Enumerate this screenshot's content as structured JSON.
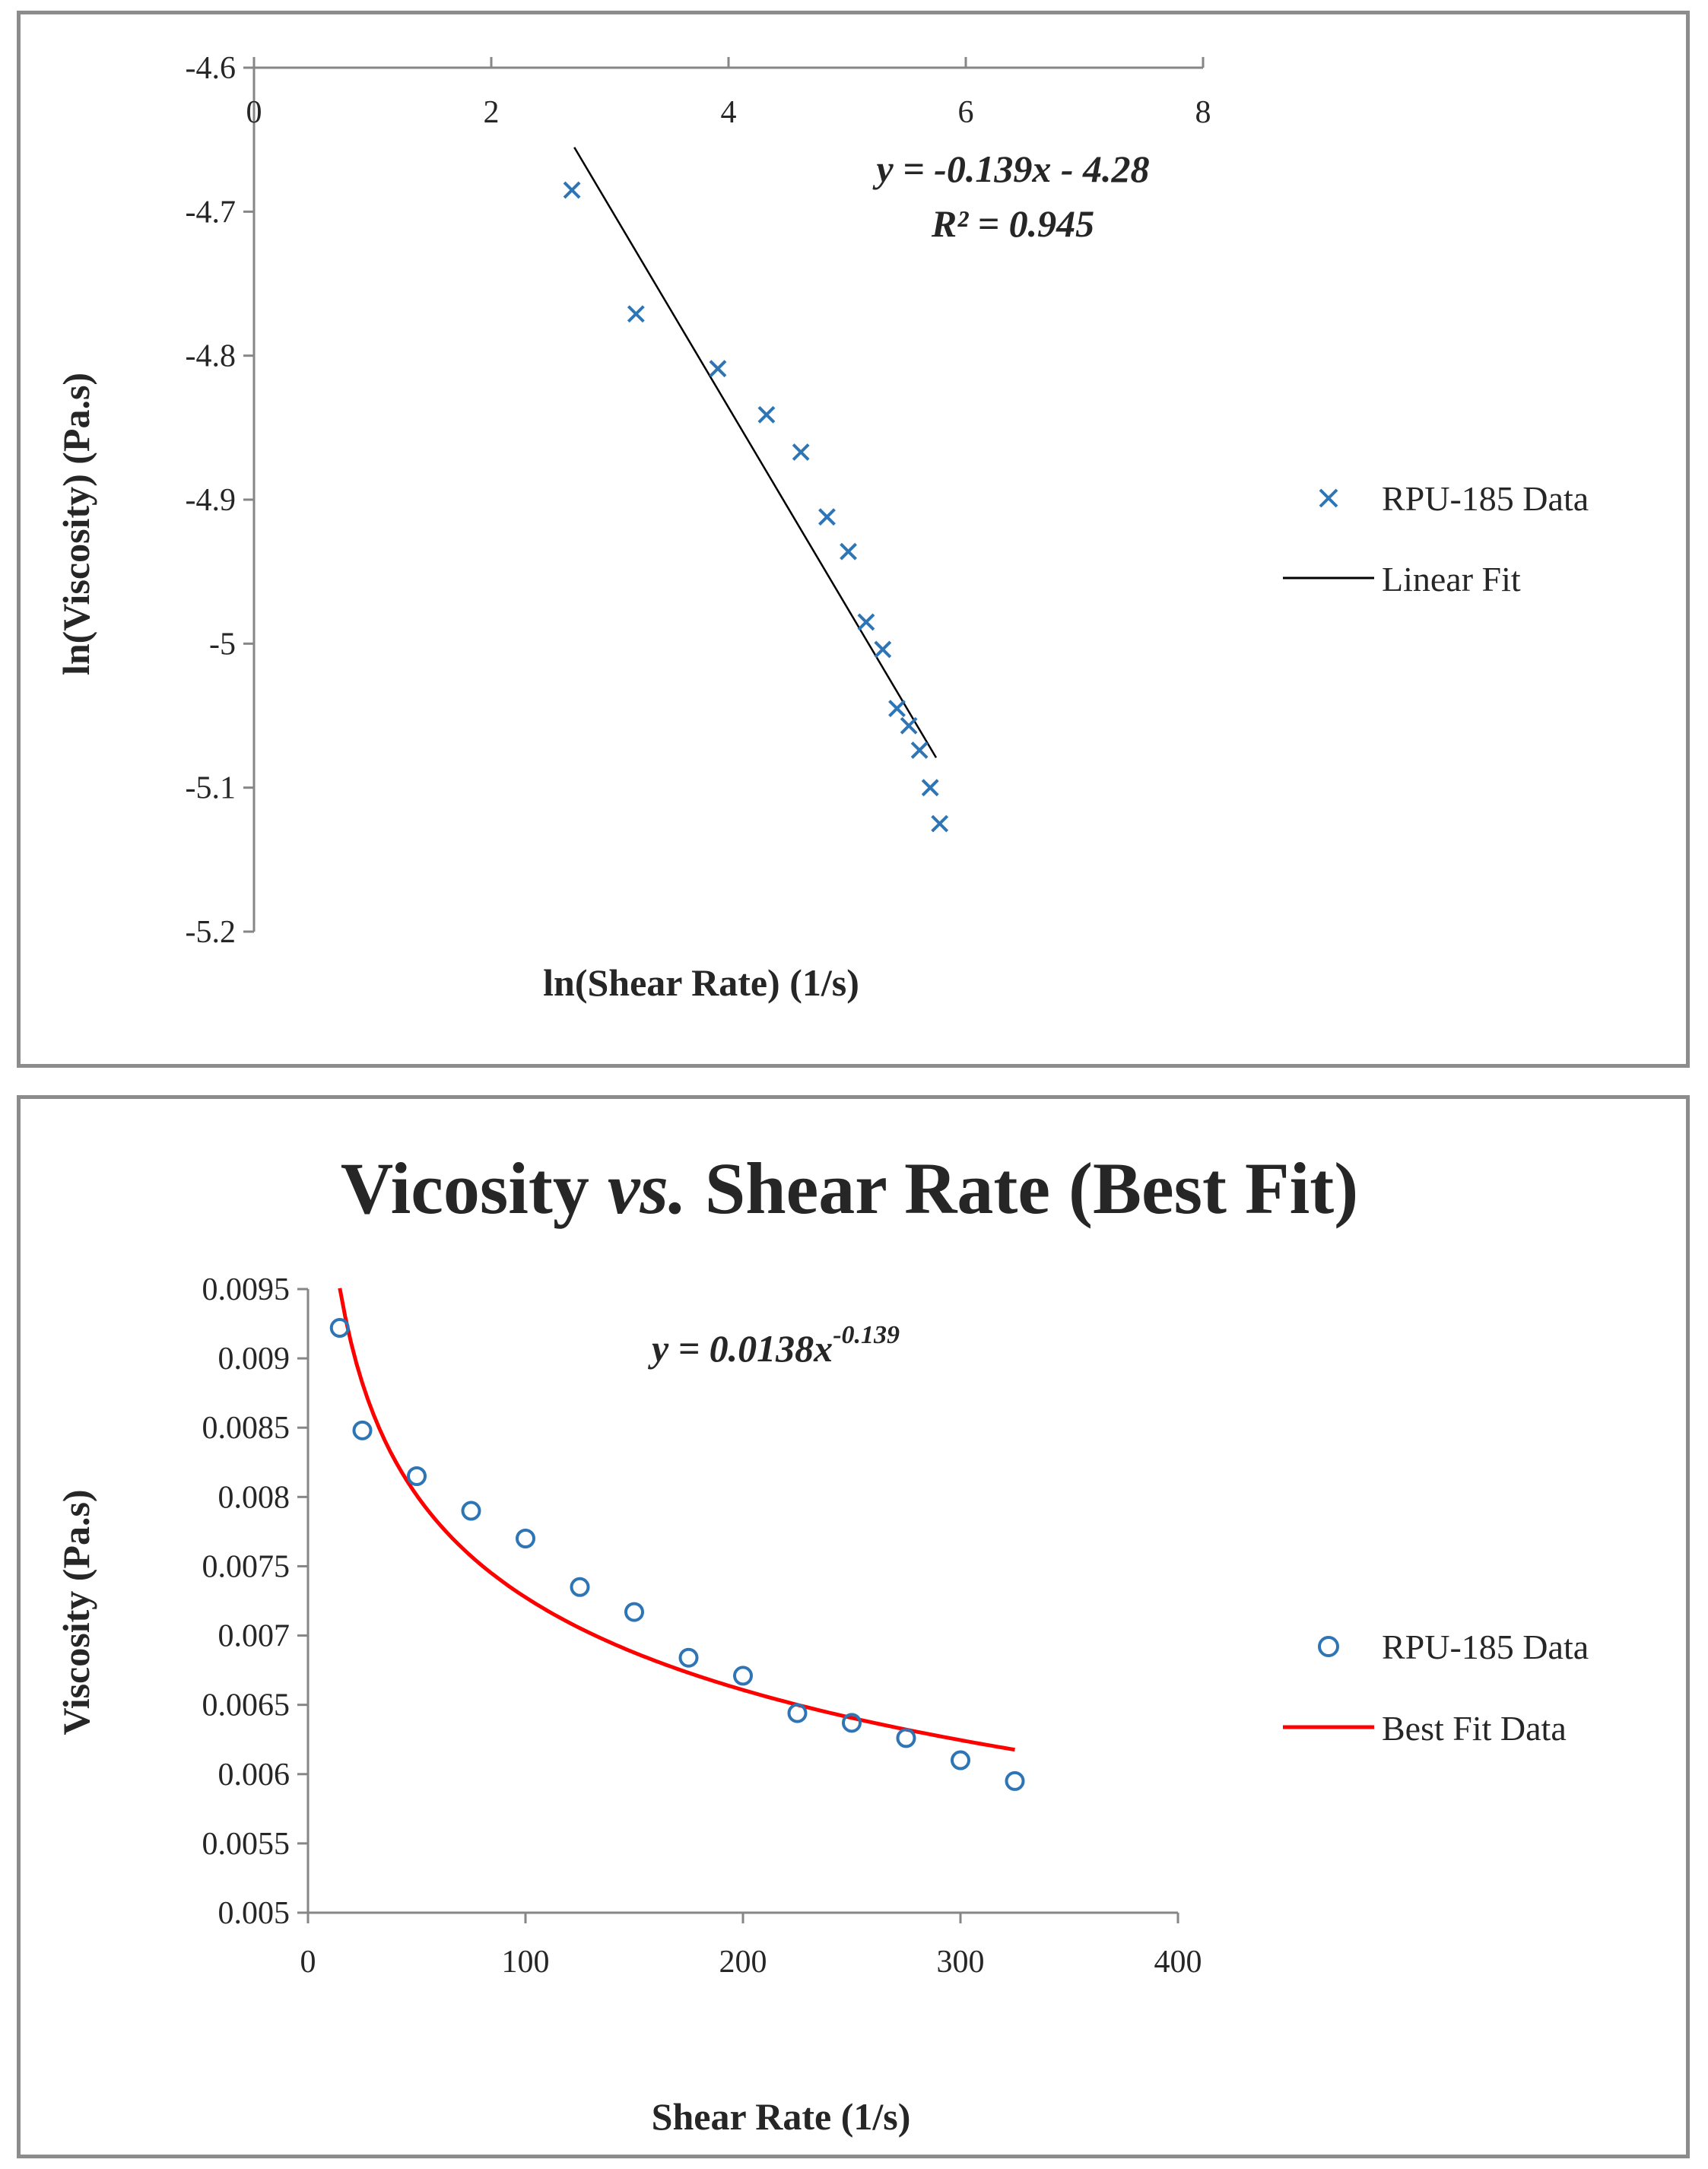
{
  "chart_data": [
    {
      "type": "scatter",
      "title": "",
      "xlabel": "ln(Shear Rate) (1/s)",
      "ylabel": "ln(Viscosity) (Pa.s)",
      "xlim": [
        0,
        8
      ],
      "ylim": [
        -5.2,
        -4.6
      ],
      "x_ticks": [
        "0",
        "2",
        "4",
        "6",
        "8"
      ],
      "y_ticks": [
        "-4.6",
        "-4.7",
        "-4.8",
        "-4.9",
        "-5",
        "-5.1",
        "-5.2"
      ],
      "series": [
        {
          "name": "RPU-185 Data",
          "marker": "x",
          "color": "#2e75b6",
          "x": [
            2.68,
            3.22,
            3.91,
            4.32,
            4.61,
            4.83,
            5.01,
            5.16,
            5.3,
            5.42,
            5.52,
            5.61,
            5.7,
            5.78
          ],
          "y": [
            -4.685,
            -4.771,
            -4.809,
            -4.841,
            -4.867,
            -4.912,
            -4.936,
            -4.985,
            -5.004,
            -5.045,
            -5.057,
            -5.074,
            -5.1,
            -5.125
          ]
        },
        {
          "name": "Linear Fit",
          "type": "line",
          "color": "#000000",
          "x": [
            2.7,
            5.75
          ],
          "y": [
            -4.6553,
            -5.0792
          ]
        }
      ],
      "annotations": [
        "y = -0.139x - 4.28",
        "R² = 0.945"
      ],
      "legend": "right"
    },
    {
      "type": "scatter",
      "title": "Vicosity vs. Shear Rate (Best Fit)",
      "title_parts": [
        "Vicosity ",
        "vs.",
        " Shear Rate (Best Fit)"
      ],
      "xlabel": "Shear Rate (1/s)",
      "ylabel": "Viscosity (Pa.s)",
      "xlim": [
        0,
        400
      ],
      "ylim": [
        0.005,
        0.0095
      ],
      "x_ticks": [
        "0",
        "100",
        "200",
        "300",
        "400"
      ],
      "y_ticks": [
        "0.0095",
        "0.009",
        "0.0085",
        "0.008",
        "0.0075",
        "0.007",
        "0.0065",
        "0.006",
        "0.0055",
        "0.005"
      ],
      "series": [
        {
          "name": "RPU-185 Data",
          "marker": "o",
          "color": "#2e75b6",
          "x": [
            14.6,
            25,
            50,
            75,
            100,
            125,
            150,
            175,
            200,
            225,
            250,
            275,
            300,
            325
          ],
          "y": [
            0.00922,
            0.00848,
            0.00815,
            0.0079,
            0.0077,
            0.00735,
            0.00717,
            0.00684,
            0.00671,
            0.00644,
            0.00637,
            0.00626,
            0.0061,
            0.00595
          ]
        },
        {
          "name": "Best Fit Data",
          "type": "line",
          "color": "#ff0000",
          "formula": "y = 0.0138x^-0.139",
          "x_range": [
            14.6,
            325
          ]
        }
      ],
      "annotations": [
        "y = 0.0138x",
        "-0.139"
      ],
      "legend": "right"
    }
  ]
}
